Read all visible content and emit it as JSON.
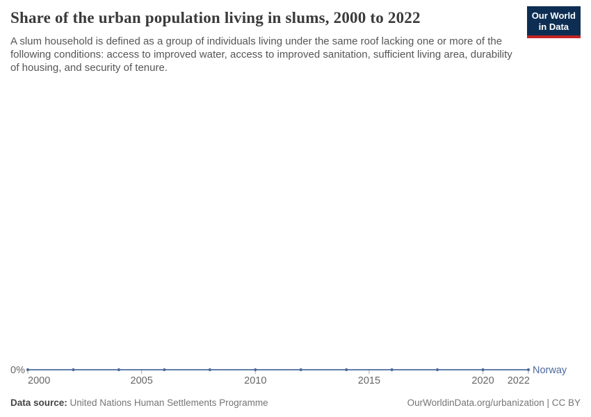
{
  "header": {
    "title": "Share of the urban population living in slums, 2000 to 2022",
    "subtitle": "A slum household is defined as a group of individuals living under the same roof lacking one or more of the following conditions: access to improved water, access to improved sanitation, sufficient living area, durability of housing, and security of tenure.",
    "logo": {
      "line1": "Our World",
      "line2": "in Data"
    }
  },
  "chart_data": {
    "type": "line",
    "title": "Share of the urban population living in slums, 2000 to 2022",
    "x": [
      2000,
      2002,
      2004,
      2006,
      2008,
      2010,
      2012,
      2014,
      2016,
      2018,
      2020,
      2022
    ],
    "series": [
      {
        "name": "Norway",
        "color": "#4c6a9c",
        "values": [
          0,
          0,
          0,
          0,
          0,
          0,
          0,
          0,
          0,
          0,
          0,
          0
        ]
      }
    ],
    "xlim": [
      2000,
      2022
    ],
    "ylim": [
      0,
      0
    ],
    "x_ticks": [
      {
        "year": 2000,
        "label": "2000"
      },
      {
        "year": 2005,
        "label": "2005"
      },
      {
        "year": 2010,
        "label": "2010"
      },
      {
        "year": 2015,
        "label": "2015"
      },
      {
        "year": 2020,
        "label": "2020"
      },
      {
        "year": 2022,
        "label": "2022"
      }
    ],
    "y_axis": {
      "tick_label": "0%"
    },
    "grid": false,
    "legend_position": "right-of-line",
    "entity_label": "Norway"
  },
  "footer": {
    "data_source_label": "Data source:",
    "data_source_value": " United Nations Human Settlements Programme",
    "attribution": "OurWorldinData.org/urbanization | CC BY"
  },
  "colors": {
    "line": "#4c6a9c",
    "entity_label": "#4c6a9c",
    "axis_text": "#666666",
    "tick_mark": "#a8a8a8",
    "logo_bg": "#0d2e52",
    "logo_accent": "#c32423",
    "title_text": "#3a3a3a",
    "subtitle_text": "#555555"
  }
}
